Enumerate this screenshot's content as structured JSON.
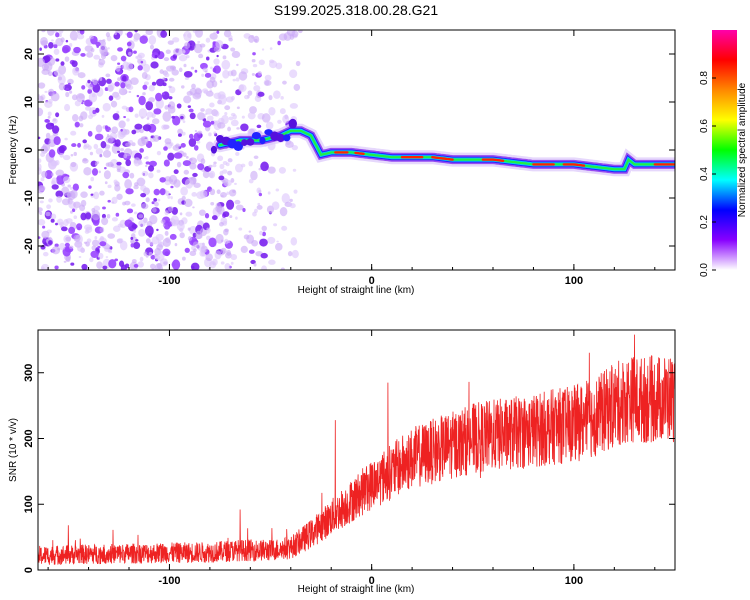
{
  "title": "S199.2025.318.00.28.G21",
  "chart_data": [
    {
      "type": "heatmap",
      "title": "S199.2025.318.00.28.G21",
      "xlabel": "Height of straight line (km)",
      "ylabel": "Frequency (Hz)",
      "xlim": [
        -165,
        150
      ],
      "ylim": [
        -25,
        25
      ],
      "xticks": [
        -100,
        0,
        100
      ],
      "xtick_labels": [
        "-100",
        "0",
        "100"
      ],
      "yticks": [
        -20,
        -10,
        0,
        10,
        20
      ],
      "ytick_labels": [
        "-20",
        "-10",
        "0",
        "10",
        "20"
      ],
      "colorbar": {
        "label": "Normalized spectral amplitude",
        "range": [
          0.0,
          1.0
        ],
        "ticks": [
          0.0,
          0.2,
          0.4,
          0.6,
          0.8
        ],
        "tick_labels": [
          "0.0",
          "0.2",
          "0.4",
          "0.6",
          "0.8"
        ],
        "colors": [
          "#ffffff",
          "#8800ff",
          "#0000ff",
          "#00ffff",
          "#00ff00",
          "#ffff00",
          "#ff8800",
          "#ff0000",
          "#ff00aa"
        ]
      },
      "signal_track": {
        "x": [
          -75,
          -65,
          -55,
          -45,
          -40,
          -35,
          -30,
          -25,
          -20,
          -10,
          0,
          10,
          20,
          30,
          40,
          50,
          60,
          70,
          80,
          90,
          100,
          110,
          120,
          125,
          127,
          130,
          140,
          150
        ],
        "frequency": [
          1,
          2,
          2,
          3,
          4,
          4,
          3,
          -1,
          -0.5,
          -0.5,
          -1,
          -1.5,
          -1.5,
          -1.5,
          -2,
          -2,
          -2,
          -2.5,
          -3,
          -3,
          -3,
          -3.5,
          -4,
          -4,
          -2,
          -3,
          -3,
          -3
        ]
      },
      "noise_region": [
        -165,
        -45
      ]
    },
    {
      "type": "line",
      "xlabel": "Height of straight line (km)",
      "ylabel": "SNR (10 * v/v)",
      "xlim": [
        -165,
        150
      ],
      "ylim": [
        0,
        365
      ],
      "xticks": [
        -100,
        0,
        100
      ],
      "xtick_labels": [
        "-100",
        "0",
        "100"
      ],
      "yticks": [
        0,
        100,
        200,
        300
      ],
      "ytick_labels": [
        "0",
        "100",
        "200",
        "300"
      ],
      "color": "#ee2222",
      "series": [
        {
          "name": "SNR trend",
          "x": [
            -165,
            -140,
            -120,
            -100,
            -80,
            -65,
            -50,
            -40,
            -30,
            -20,
            -10,
            0,
            10,
            20,
            30,
            40,
            50,
            60,
            70,
            80,
            90,
            100,
            110,
            120,
            128,
            132,
            140,
            150
          ],
          "values": [
            22,
            24,
            25,
            26,
            27,
            30,
            30,
            34,
            55,
            80,
            105,
            130,
            150,
            170,
            180,
            190,
            200,
            205,
            208,
            212,
            218,
            222,
            232,
            250,
            262,
            258,
            260,
            262
          ]
        }
      ],
      "spikes": [
        {
          "x": -150,
          "value": 68
        },
        {
          "x": -65,
          "value": 92
        },
        {
          "x": -18,
          "value": 228
        },
        {
          "x": 8,
          "value": 285
        },
        {
          "x": 130,
          "value": 358
        }
      ]
    }
  ]
}
